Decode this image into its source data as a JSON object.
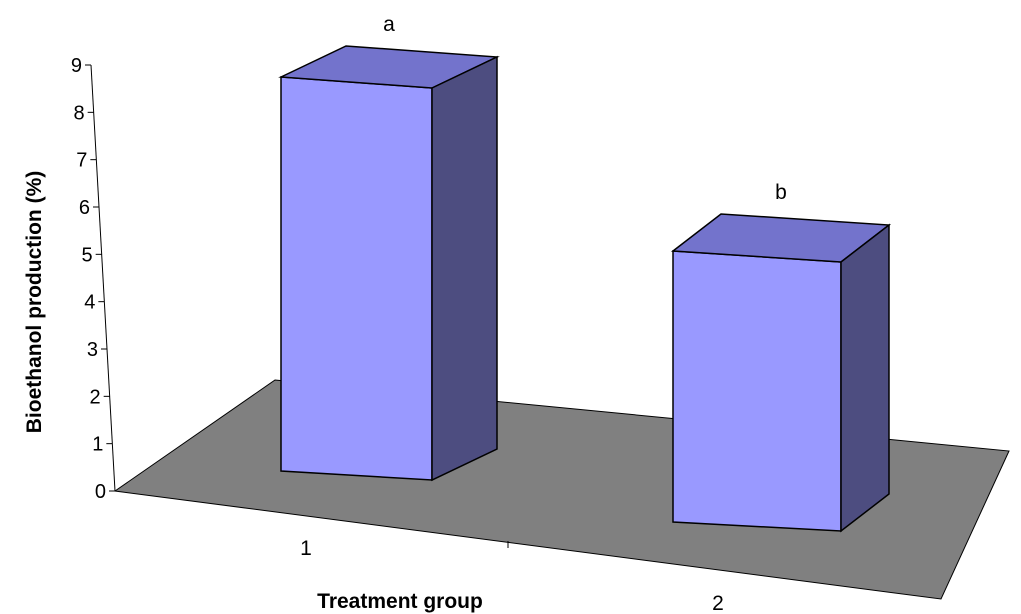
{
  "chart_data": {
    "type": "bar",
    "categories": [
      "1",
      "2"
    ],
    "values": [
      8.7,
      5.05
    ],
    "annotations": [
      "a",
      "b"
    ],
    "xlabel": "Treatment group",
    "ylabel": "Bioethanol production (%)",
    "ylim": [
      0,
      9
    ],
    "yticks": [
      "0",
      "1",
      "2",
      "3",
      "4",
      "5",
      "6",
      "7",
      "8",
      "9"
    ],
    "grid": false,
    "three_d": true,
    "colors": {
      "bar_front": "#9999ff",
      "bar_top": "#7373cc",
      "bar_side": "#4d4d80",
      "floor": "#808080"
    }
  }
}
